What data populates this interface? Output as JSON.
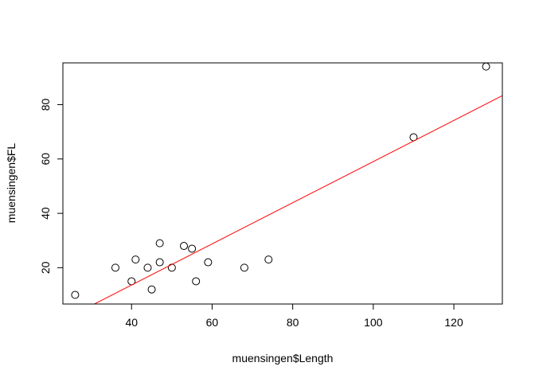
{
  "chart_data": {
    "type": "scatter",
    "title": "",
    "xlabel": "muensingen$Length",
    "ylabel": "muensingen$FL",
    "xlim": [
      22.96,
      132.04
    ],
    "ylim": [
      6.64,
      95.36
    ],
    "xticks": [
      40,
      60,
      80,
      100,
      120
    ],
    "yticks": [
      20,
      40,
      60,
      80
    ],
    "grid": false,
    "legend": "none",
    "points": [
      {
        "x": 26,
        "y": 10
      },
      {
        "x": 36,
        "y": 20
      },
      {
        "x": 40,
        "y": 15
      },
      {
        "x": 41,
        "y": 23
      },
      {
        "x": 44,
        "y": 20
      },
      {
        "x": 45,
        "y": 12
      },
      {
        "x": 47,
        "y": 29
      },
      {
        "x": 47,
        "y": 22
      },
      {
        "x": 50,
        "y": 20
      },
      {
        "x": 53,
        "y": 28
      },
      {
        "x": 55,
        "y": 27
      },
      {
        "x": 56,
        "y": 15
      },
      {
        "x": 59,
        "y": 22
      },
      {
        "x": 68,
        "y": 20
      },
      {
        "x": 74,
        "y": 23
      },
      {
        "x": 110,
        "y": 68
      },
      {
        "x": 128,
        "y": 94
      }
    ],
    "regression_line": {
      "intercept": -16.65,
      "slope": 0.757,
      "color": "#ff0000"
    },
    "point_color": "#000000"
  }
}
